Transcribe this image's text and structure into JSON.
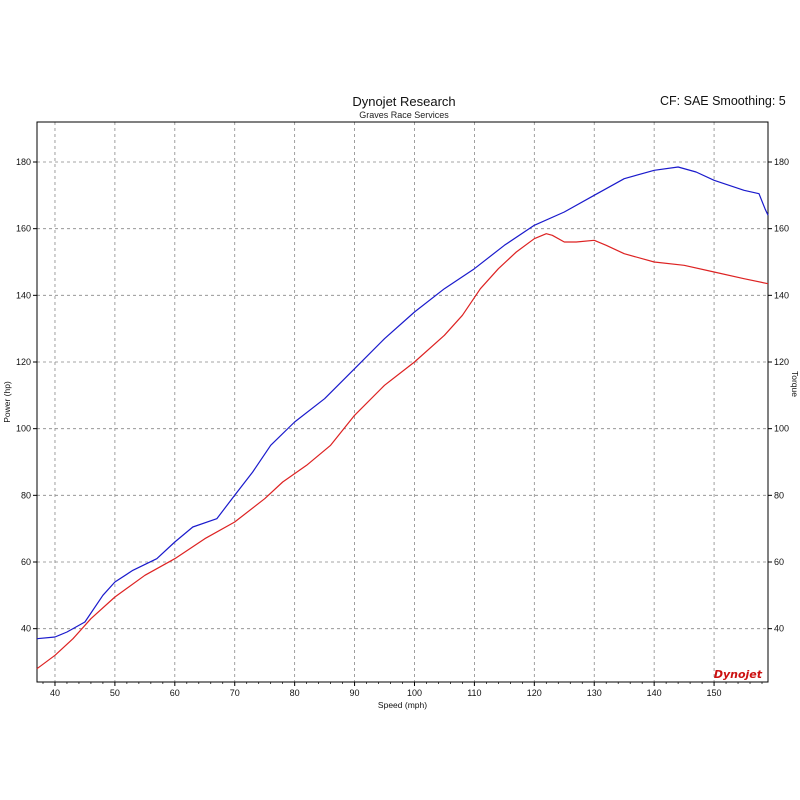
{
  "header": {
    "title": "Dynojet Research",
    "subtitle": "Graves Race Services",
    "cf_text": "CF: SAE Smoothing: 5"
  },
  "logo": {
    "text": "Dynojet"
  },
  "chart_data": {
    "type": "line",
    "xlabel": "Speed (mph)",
    "ylabel": "Power (hp)",
    "ylabel_right": "Torque",
    "xlim": [
      37,
      159
    ],
    "ylim": [
      24,
      192
    ],
    "x_ticks": [
      40,
      50,
      60,
      70,
      80,
      90,
      100,
      110,
      120,
      130,
      140,
      150
    ],
    "y_ticks": [
      40,
      60,
      80,
      100,
      120,
      140,
      160,
      180
    ],
    "grid": true,
    "series": [
      {
        "color": "#1a1acc",
        "points": [
          [
            37,
            37
          ],
          [
            40,
            37.5
          ],
          [
            42,
            39
          ],
          [
            45,
            42
          ],
          [
            48,
            50
          ],
          [
            50,
            54
          ],
          [
            53,
            57.5
          ],
          [
            57,
            61
          ],
          [
            60,
            66
          ],
          [
            63,
            70.5
          ],
          [
            67,
            73
          ],
          [
            70,
            80
          ],
          [
            73,
            87
          ],
          [
            76,
            95
          ],
          [
            80,
            102
          ],
          [
            85,
            109
          ],
          [
            90,
            118
          ],
          [
            95,
            127
          ],
          [
            100,
            135
          ],
          [
            105,
            142
          ],
          [
            110,
            148
          ],
          [
            115,
            155
          ],
          [
            120,
            161
          ],
          [
            125,
            165
          ],
          [
            130,
            170
          ],
          [
            135,
            175
          ],
          [
            140,
            177.5
          ],
          [
            144,
            178.5
          ],
          [
            147,
            177
          ],
          [
            150,
            174.5
          ],
          [
            155,
            171.5
          ],
          [
            157.5,
            170.5
          ],
          [
            158.5,
            166
          ],
          [
            159,
            164
          ]
        ]
      },
      {
        "color": "#dd2222",
        "points": [
          [
            37,
            28
          ],
          [
            40,
            32
          ],
          [
            43,
            37
          ],
          [
            46,
            43
          ],
          [
            50,
            49.5
          ],
          [
            55,
            56
          ],
          [
            60,
            61
          ],
          [
            65,
            67
          ],
          [
            70,
            72
          ],
          [
            75,
            79
          ],
          [
            78,
            84
          ],
          [
            82,
            89
          ],
          [
            86,
            95
          ],
          [
            90,
            104
          ],
          [
            95,
            113
          ],
          [
            100,
            120
          ],
          [
            105,
            128
          ],
          [
            108,
            134
          ],
          [
            111,
            142
          ],
          [
            114,
            148
          ],
          [
            117,
            153
          ],
          [
            120,
            157
          ],
          [
            122,
            158.5
          ],
          [
            123,
            158
          ],
          [
            125,
            156
          ],
          [
            127,
            156
          ],
          [
            130,
            156.5
          ],
          [
            132,
            155
          ],
          [
            135,
            152.5
          ],
          [
            140,
            150
          ],
          [
            145,
            149
          ],
          [
            150,
            147
          ],
          [
            155,
            145
          ],
          [
            159,
            143.5
          ]
        ]
      }
    ]
  }
}
